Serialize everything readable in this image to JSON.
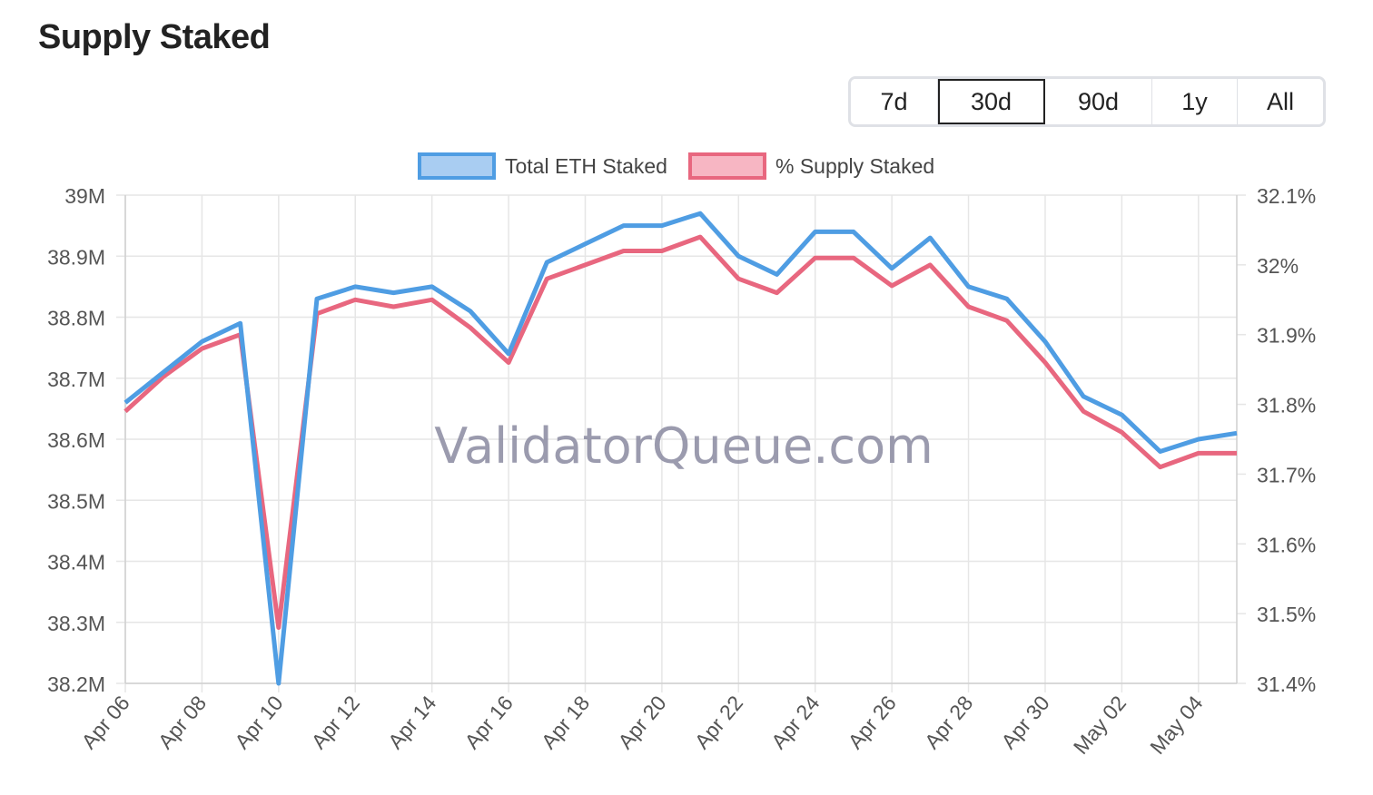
{
  "header": {
    "title": "Supply Staked"
  },
  "range_buttons": [
    {
      "label": "7d",
      "active": false
    },
    {
      "label": "30d",
      "active": true
    },
    {
      "label": "90d",
      "active": false
    },
    {
      "label": "1y",
      "active": false
    },
    {
      "label": "All",
      "active": false
    }
  ],
  "watermark": "ValidatorQueue.com",
  "chart_data": {
    "type": "line",
    "x": [
      "Apr 06",
      "Apr 07",
      "Apr 08",
      "Apr 09",
      "Apr 10",
      "Apr 11",
      "Apr 12",
      "Apr 13",
      "Apr 14",
      "Apr 15",
      "Apr 16",
      "Apr 17",
      "Apr 18",
      "Apr 19",
      "Apr 20",
      "Apr 21",
      "Apr 22",
      "Apr 23",
      "Apr 24",
      "Apr 25",
      "Apr 26",
      "Apr 27",
      "Apr 28",
      "Apr 29",
      "Apr 30",
      "May 01",
      "May 02",
      "May 03",
      "May 04",
      "May 05"
    ],
    "x_tick_labels": [
      "Apr 06",
      "Apr 08",
      "Apr 10",
      "Apr 12",
      "Apr 14",
      "Apr 16",
      "Apr 18",
      "Apr 20",
      "Apr 22",
      "Apr 24",
      "Apr 26",
      "Apr 28",
      "Apr 30",
      "May 02",
      "May 04"
    ],
    "series": [
      {
        "name": "Total ETH Staked",
        "axis": "left",
        "color": "#4f9de3",
        "fill": "#a9cdf2",
        "values": [
          38.66,
          38.71,
          38.76,
          38.79,
          38.2,
          38.83,
          38.85,
          38.84,
          38.85,
          38.81,
          38.74,
          38.89,
          38.92,
          38.95,
          38.95,
          38.97,
          38.9,
          38.87,
          38.94,
          38.94,
          38.88,
          38.93,
          38.85,
          38.83,
          38.76,
          38.67,
          38.64,
          38.58,
          38.6,
          38.61
        ]
      },
      {
        "name": "% Supply Staked",
        "axis": "right",
        "color": "#e8677f",
        "fill": "#f7b6c3",
        "values": [
          31.79,
          31.84,
          31.88,
          31.9,
          31.48,
          31.93,
          31.95,
          31.94,
          31.95,
          31.91,
          31.86,
          31.98,
          32.0,
          32.02,
          32.02,
          32.04,
          31.98,
          31.96,
          32.01,
          32.01,
          31.97,
          32.0,
          31.94,
          31.92,
          31.86,
          31.79,
          31.76,
          31.71,
          31.73,
          31.73
        ]
      }
    ],
    "y_left": {
      "ylim": [
        38.2,
        39.0
      ],
      "ticks": [
        "39M",
        "38.9M",
        "38.8M",
        "38.7M",
        "38.6M",
        "38.5M",
        "38.4M",
        "38.3M",
        "38.2M"
      ]
    },
    "y_right": {
      "ylim": [
        31.4,
        32.1
      ],
      "ticks": [
        "32.1%",
        "32%",
        "31.9%",
        "31.8%",
        "31.7%",
        "31.6%",
        "31.5%",
        "31.4%"
      ]
    },
    "grid": true,
    "legend_position": "top-center"
  }
}
